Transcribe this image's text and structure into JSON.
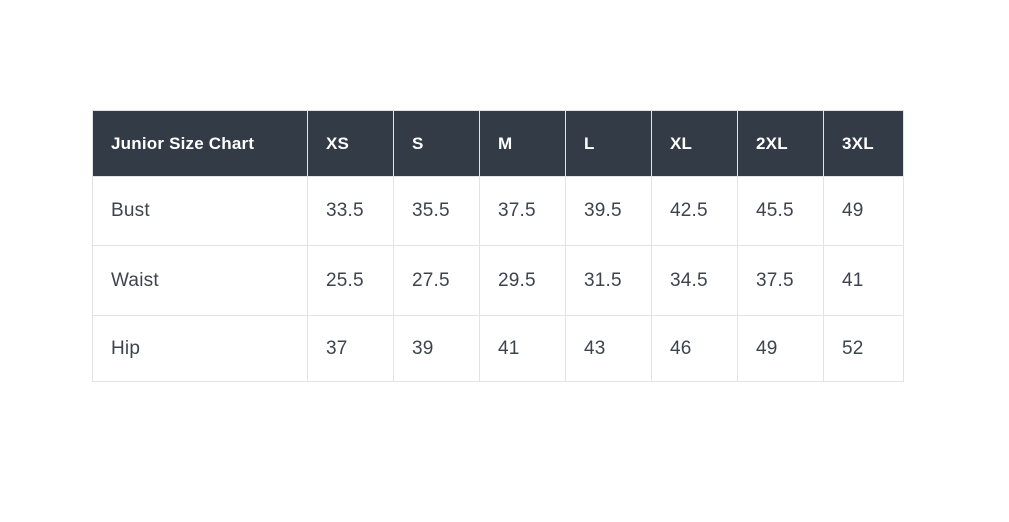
{
  "theme": {
    "page_bg": "#ffffff",
    "header_bg": "#333b46",
    "header_text": "#ffffff",
    "cell_bg": "#ffffff",
    "body_text": "#3d444d",
    "border_color": "#e1e3e5"
  },
  "chart_data": {
    "type": "table",
    "title": "Junior Size Chart",
    "columns": [
      "Junior Size Chart",
      "XS",
      "S",
      "M",
      "L",
      "XL",
      "2XL",
      "3XL"
    ],
    "rows": [
      [
        "Bust",
        "33.5",
        "35.5",
        "37.5",
        "39.5",
        "42.5",
        "45.5",
        "49"
      ],
      [
        "Waist",
        "25.5",
        "27.5",
        "29.5",
        "31.5",
        "34.5",
        "37.5",
        "41"
      ],
      [
        "Hip",
        "37",
        "39",
        "41",
        "43",
        "46",
        "49",
        "52"
      ]
    ],
    "layout": {
      "header_style": "dark-slate",
      "grid": true,
      "value_alignment": "left",
      "units": "inches (implied, not shown)"
    }
  }
}
